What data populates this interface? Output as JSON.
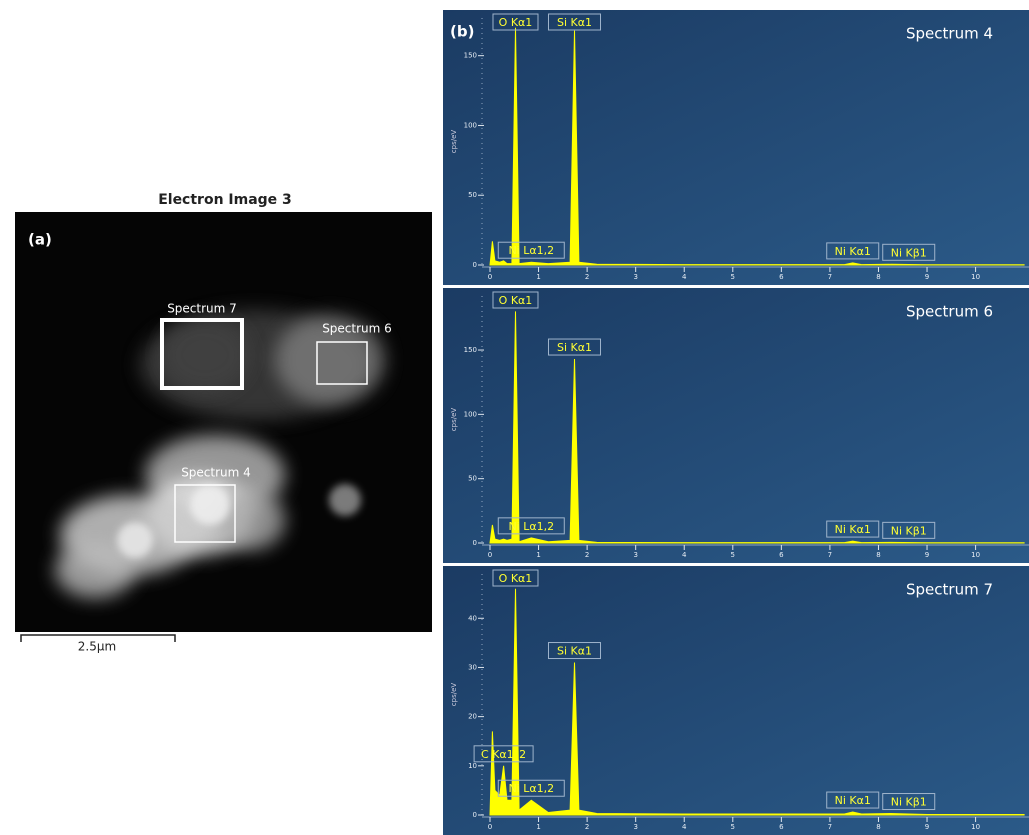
{
  "image": {
    "title": "Electron Image 3",
    "label": "(a)",
    "regions": [
      {
        "label": "Spectrum 7"
      },
      {
        "label": "Spectrum 6"
      },
      {
        "label": "Spectrum 4"
      }
    ],
    "scale_bar": "2.5µm"
  },
  "panel_b_label": "(b)",
  "chart_data": [
    {
      "type": "area",
      "title": "Spectrum 4",
      "y_label": "cps/eV",
      "color": "#ffff00",
      "x": [
        0,
        0.05,
        0.1,
        0.2,
        0.28,
        0.35,
        0.45,
        0.525,
        0.6,
        0.85,
        1.2,
        1.65,
        1.74,
        1.83,
        2.2,
        4,
        7.3,
        7.47,
        7.65,
        8.26,
        9,
        11
      ],
      "values": [
        0,
        17,
        3,
        2,
        3,
        1,
        1,
        170,
        1,
        2,
        1,
        2,
        168,
        2,
        0.5,
        0.3,
        0.3,
        1.5,
        0.3,
        0.5,
        0.2,
        0.2
      ],
      "xlim": [
        0,
        11.1
      ],
      "xticks": [
        0,
        1,
        2,
        3,
        4,
        5,
        6,
        7,
        8,
        9,
        10
      ],
      "ylim": [
        0,
        177
      ],
      "yticks": [
        0,
        50,
        100,
        150
      ],
      "annotations": [
        {
          "text": "O Kα1",
          "x": 0.525
        },
        {
          "text": "Si Kα1",
          "x": 1.74
        },
        {
          "text": "Ni Lα1,2",
          "x": 0.85
        },
        {
          "text": "Ni Kα1",
          "x": 7.47
        },
        {
          "text": "Ni Kβ1",
          "x": 8.26
        }
      ]
    },
    {
      "type": "area",
      "title": "Spectrum 6",
      "y_label": "cps/eV",
      "color": "#ffff00",
      "x": [
        0,
        0.05,
        0.1,
        0.2,
        0.28,
        0.35,
        0.45,
        0.525,
        0.6,
        0.85,
        1.2,
        1.65,
        1.74,
        1.83,
        2.2,
        4,
        7.3,
        7.47,
        7.65,
        8.26,
        9,
        11
      ],
      "values": [
        0,
        14,
        3,
        2,
        3,
        2,
        3,
        180,
        1,
        4,
        1,
        2,
        143,
        2,
        0.5,
        0.3,
        0.3,
        1.5,
        0.3,
        0.5,
        0.2,
        0.2
      ],
      "xlim": [
        0,
        11.1
      ],
      "xticks": [
        0,
        1,
        2,
        3,
        4,
        5,
        6,
        7,
        8,
        9,
        10
      ],
      "ylim": [
        0,
        192
      ],
      "yticks": [
        0,
        50,
        100,
        150
      ],
      "annotations": [
        {
          "text": "O Kα1",
          "x": 0.525
        },
        {
          "text": "Si Kα1",
          "x": 1.74
        },
        {
          "text": "Ni Lα1,2",
          "x": 0.85
        },
        {
          "text": "Ni Kα1",
          "x": 7.47
        },
        {
          "text": "Ni Kβ1",
          "x": 8.26
        }
      ]
    },
    {
      "type": "area",
      "title": "Spectrum 7",
      "y_label": "cps/eV",
      "color": "#ffff00",
      "x": [
        0,
        0.05,
        0.1,
        0.2,
        0.28,
        0.35,
        0.45,
        0.525,
        0.6,
        0.85,
        1.2,
        1.65,
        1.74,
        1.83,
        2.2,
        4,
        7.3,
        7.47,
        7.65,
        8.26,
        9,
        11
      ],
      "values": [
        0,
        17,
        5,
        4,
        10,
        3,
        3,
        46,
        1,
        3,
        0.5,
        1,
        31,
        1,
        0.3,
        0.2,
        0.2,
        0.6,
        0.2,
        0.3,
        0.1,
        0.1
      ],
      "xlim": [
        0,
        11.1
      ],
      "xticks": [
        0,
        1,
        2,
        3,
        4,
        5,
        6,
        7,
        8,
        9,
        10
      ],
      "ylim": [
        0,
        49
      ],
      "yticks": [
        0,
        10,
        20,
        30,
        40
      ],
      "annotations": [
        {
          "text": "O Kα1",
          "x": 0.525
        },
        {
          "text": "Si Kα1",
          "x": 1.74
        },
        {
          "text": "C Kα1_2",
          "x": 0.28
        },
        {
          "text": "Ni Lα1,2",
          "x": 0.85
        },
        {
          "text": "Ni Kα1",
          "x": 7.47
        },
        {
          "text": "Ni Kβ1",
          "x": 8.26
        }
      ]
    }
  ]
}
